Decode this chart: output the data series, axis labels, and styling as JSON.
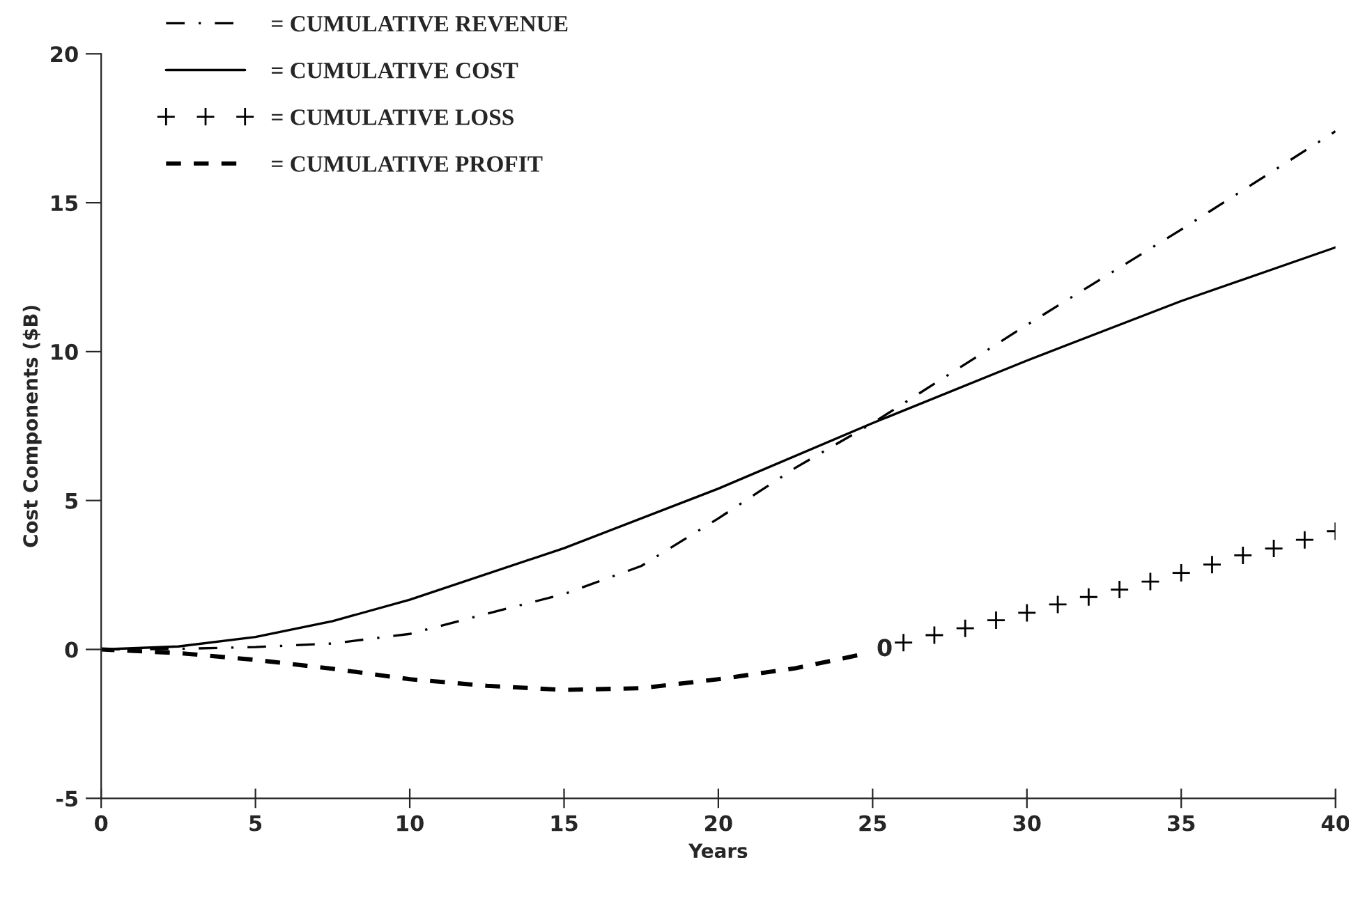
{
  "chart_data": {
    "type": "line",
    "xlabel": "Years",
    "ylabel": "Cost Components ($B)",
    "xlim": [
      0,
      40
    ],
    "ylim": [
      -5,
      20
    ],
    "xticks": [
      0,
      5,
      10,
      15,
      20,
      25,
      30,
      35,
      40
    ],
    "yticks": [
      -5,
      0,
      5,
      10,
      15,
      20
    ],
    "grid": false,
    "legend": "top left",
    "annotations": [
      "0"
    ],
    "series": [
      {
        "name": "= CUMULATIVE REVENUE",
        "color": "#000000",
        "line_style": "dashdot",
        "x": [
          0,
          2.5,
          5,
          7.5,
          10,
          12.5,
          15,
          17.5,
          20,
          22.5,
          25,
          30,
          35,
          40
        ],
        "values": [
          0,
          0.02,
          0.08,
          0.2,
          0.52,
          1.2,
          1.86,
          2.8,
          4.4,
          6.1,
          7.6,
          10.9,
          14.1,
          17.4
        ]
      },
      {
        "name": "= CUMULATIVE COST",
        "color": "#000000",
        "line_style": "solid",
        "x": [
          0,
          2.5,
          5,
          7.5,
          10,
          15,
          20,
          25,
          30,
          35,
          40
        ],
        "values": [
          0,
          0.1,
          0.42,
          0.95,
          1.67,
          3.4,
          5.4,
          7.6,
          9.7,
          11.7,
          13.5
        ]
      },
      {
        "name": "= CUMULATIVE LOSS",
        "type": "scatter",
        "marker": "cross",
        "color": "#000000",
        "x": [
          26,
          27,
          28,
          29,
          30,
          31,
          32,
          33,
          34,
          35,
          36,
          37,
          38,
          39,
          40
        ],
        "values": [
          0.23,
          0.48,
          0.71,
          0.98,
          1.23,
          1.51,
          1.76,
          2.01,
          2.28,
          2.57,
          2.85,
          3.16,
          3.39,
          3.68,
          3.97
        ]
      },
      {
        "name": "= CUMULATIVE PROFIT",
        "color": "#000000",
        "line_style": "dashed",
        "x": [
          0,
          2.5,
          5,
          7.5,
          10,
          12.5,
          15,
          17.5,
          20,
          22.5,
          24.5
        ],
        "values": [
          0,
          -0.12,
          -0.35,
          -0.65,
          -1.0,
          -1.22,
          -1.36,
          -1.3,
          -1.0,
          -0.63,
          -0.2
        ]
      }
    ]
  }
}
